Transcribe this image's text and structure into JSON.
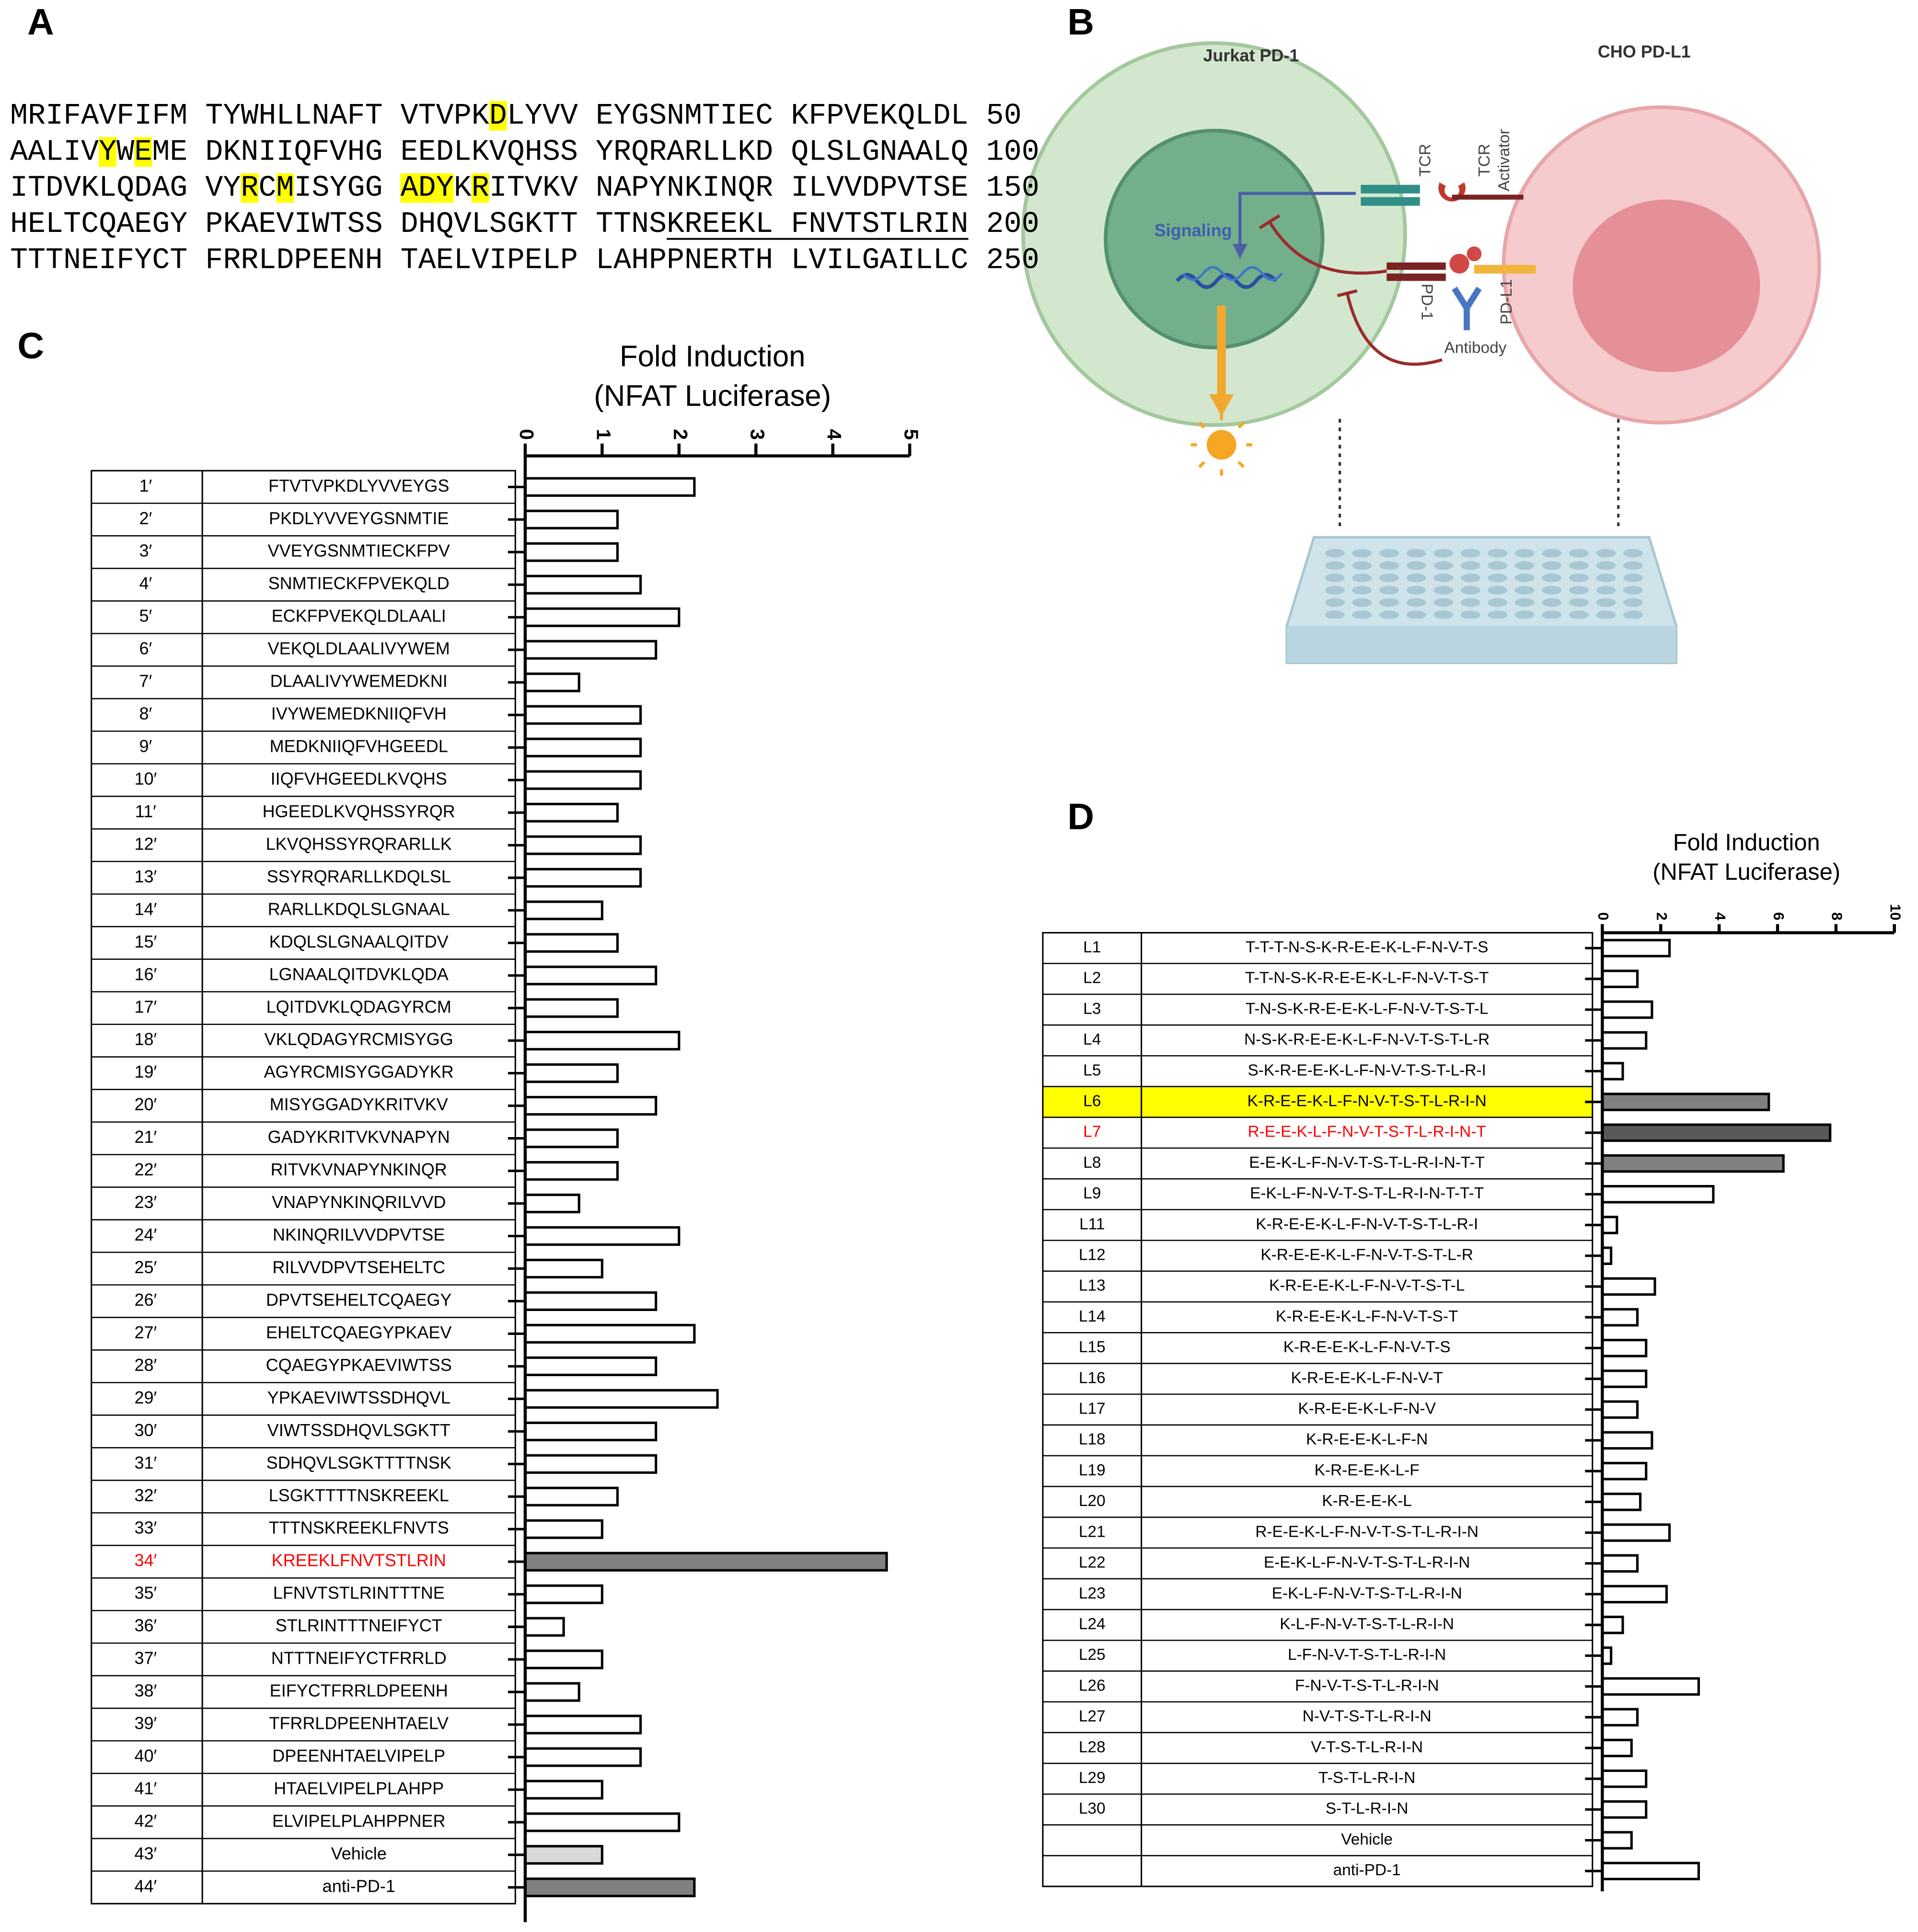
{
  "panel_a": {
    "label": "A",
    "lines": [
      {
        "segments": [
          {
            "text": "MRIFAVFIFM TYWHLLNAFT VTVPK",
            "style": "plain"
          },
          {
            "text": "D",
            "style": "highlight"
          },
          {
            "text": "LYVV EYGSNMTIEC KFPVEKQLDL",
            "style": "plain"
          }
        ],
        "number": "50"
      },
      {
        "segments": [
          {
            "text": "AALIV",
            "style": "plain"
          },
          {
            "text": "Y",
            "style": "highlight"
          },
          {
            "text": "W",
            "style": "plain"
          },
          {
            "text": "E",
            "style": "highlight"
          },
          {
            "text": "ME DKNIIQFVHG EEDLKVQHSS YRQRARLLKD QLSLGNAALQ",
            "style": "plain"
          }
        ],
        "number": "100"
      },
      {
        "segments": [
          {
            "text": "ITDVKLQDAG VY",
            "style": "plain"
          },
          {
            "text": "R",
            "style": "highlight"
          },
          {
            "text": "C",
            "style": "plain"
          },
          {
            "text": "M",
            "style": "highlight"
          },
          {
            "text": "ISYGG ",
            "style": "plain"
          },
          {
            "text": "ADY",
            "style": "highlight"
          },
          {
            "text": "K",
            "style": "plain"
          },
          {
            "text": "R",
            "style": "highlight"
          },
          {
            "text": "ITVKV NAPYNKINQR ILVVDPVTSE",
            "style": "plain"
          }
        ],
        "number": "150"
      },
      {
        "segments": [
          {
            "text": "HELTCQAEGY PKAEVIWTSS DHQVLSGKTT TTNS",
            "style": "plain"
          },
          {
            "text": "KREEKL FNVTSTLRIN",
            "style": "underline"
          }
        ],
        "number": "200"
      },
      {
        "segments": [
          {
            "text": "TTTNEIFYCT FRRLDPEENH TAELVIPELP LAHPPNERTH LVILGAILLC",
            "style": "plain"
          }
        ],
        "number": "250"
      }
    ]
  },
  "panel_b": {
    "label": "B",
    "jurkat": "Jurkat PD-1",
    "cho": "CHO PD-L1",
    "signaling": "Signaling",
    "tcr": "TCR",
    "tcr_activator": [
      "TCR",
      "Activator"
    ],
    "pd1": "PD-1",
    "pdl1": "PD-L1",
    "antibody": "Antibody"
  },
  "chart_data": [
    {
      "type": "bar",
      "orientation": "horizontal",
      "panel": "C",
      "title": "Fold Induction",
      "subtitle": "(NFAT Luciferase)",
      "row_labels": [
        "1′",
        "2′",
        "3′",
        "4′",
        "5′",
        "6′",
        "7′",
        "8′",
        "9′",
        "10′",
        "11′",
        "12′",
        "13′",
        "14′",
        "15′",
        "16′",
        "17′",
        "18′",
        "19′",
        "20′",
        "21′",
        "22′",
        "23′",
        "24′",
        "25′",
        "26′",
        "27′",
        "28′",
        "29′",
        "30′",
        "31′",
        "32′",
        "33′",
        "34′",
        "35′",
        "36′",
        "37′",
        "38′",
        "39′",
        "40′",
        "41′",
        "42′",
        "43′",
        "44′"
      ],
      "categories": [
        "FTVTVPKDLYVVEYGS",
        "PKDLYVVEYGSNMTIE",
        "VVEYGSNMTIECKFPV",
        "SNMTIECKFPVEKQLD",
        "ECKFPVEKQLDLAALI",
        "VEKQLDLAALIVYWEM",
        "DLAALIVYWEMEDKNI",
        "IVYWEMEDKNIIQFVH",
        "MEDKNIIQFVHGEEDL",
        "IIQFVHGEEDLKVQHS",
        "HGEEDLKVQHSSYRQR",
        "LKVQHSSYRQRARLLK",
        "SSYRQRARLLKDQLSL",
        "RARLLKDQLSLGNAAL",
        "KDQLSLGNAALQITDV",
        "LGNAALQITDVKLQDA",
        "LQITDVKLQDAGYRCM",
        "VKLQDAGYRCMISYGG",
        "AGYRCMISYGGADYKR",
        "MISYGGADYKRITVKV",
        "GADYKRITVKVNAPYN",
        "RITVKVNAPYNKINQR",
        "VNAPYNKINQRILVVD",
        "NKINQRILVVDPVTSE",
        "RILVVDPVTSEHELTC",
        "DPVTSEHELTCQAEGY",
        "EHELTCQAEGYPKAEV",
        "CQAEGYPKAEVIWTSS",
        "YPKAEVIWTSSDHQVL",
        "VIWTSSDHQVLSGKTT",
        "SDHQVLSGKTTTTNSK",
        "LSGKTTTTNSKREEKL",
        "TTTNSKREEKLFNVTS",
        "KREEKLFNVTSTLRIN",
        "LFNVTSTLRINTTTNE",
        "STLRINTTTNEIFYCT",
        "NTTTNEIFYCTFRRLD",
        "EIFYCTFRRLDPEENH",
        "TFRRLDPEENHTAELV",
        "DPEENHTAELVIPELP",
        "HTAELVIPELPLAHPP",
        "ELVIPELPLAHPPNER",
        "Vehicle",
        "anti-PD-1"
      ],
      "values": [
        2.2,
        1.2,
        1.2,
        1.5,
        2.0,
        1.7,
        0.7,
        1.5,
        1.5,
        1.5,
        1.2,
        1.5,
        1.5,
        1.0,
        1.2,
        1.7,
        1.2,
        2.0,
        1.2,
        1.7,
        1.2,
        1.2,
        0.7,
        2.0,
        1.0,
        1.7,
        2.2,
        1.7,
        2.5,
        1.7,
        1.7,
        1.2,
        1.0,
        4.7,
        1.0,
        0.5,
        1.0,
        0.7,
        1.5,
        1.5,
        1.0,
        2.0,
        1.0,
        2.2
      ],
      "colors": [
        "#ffffff",
        "#ffffff",
        "#ffffff",
        "#ffffff",
        "#ffffff",
        "#ffffff",
        "#ffffff",
        "#ffffff",
        "#ffffff",
        "#ffffff",
        "#ffffff",
        "#ffffff",
        "#ffffff",
        "#ffffff",
        "#ffffff",
        "#ffffff",
        "#ffffff",
        "#ffffff",
        "#ffffff",
        "#ffffff",
        "#ffffff",
        "#ffffff",
        "#ffffff",
        "#ffffff",
        "#ffffff",
        "#ffffff",
        "#ffffff",
        "#ffffff",
        "#ffffff",
        "#ffffff",
        "#ffffff",
        "#ffffff",
        "#ffffff",
        "#808080",
        "#ffffff",
        "#ffffff",
        "#ffffff",
        "#ffffff",
        "#ffffff",
        "#ffffff",
        "#ffffff",
        "#ffffff",
        "#d9d9d9",
        "#808080"
      ],
      "label_colors": [
        "#000000",
        "#000000",
        "#000000",
        "#000000",
        "#000000",
        "#000000",
        "#000000",
        "#000000",
        "#000000",
        "#000000",
        "#000000",
        "#000000",
        "#000000",
        "#000000",
        "#000000",
        "#000000",
        "#000000",
        "#000000",
        "#000000",
        "#000000",
        "#000000",
        "#000000",
        "#000000",
        "#000000",
        "#000000",
        "#000000",
        "#000000",
        "#000000",
        "#000000",
        "#000000",
        "#000000",
        "#000000",
        "#000000",
        "#ff0000",
        "#000000",
        "#000000",
        "#000000",
        "#000000",
        "#000000",
        "#000000",
        "#000000",
        "#000000",
        "#000000",
        "#000000"
      ],
      "xlim": [
        0,
        5
      ],
      "xticks": [
        0,
        1,
        2,
        3,
        4,
        5
      ]
    },
    {
      "type": "bar",
      "orientation": "horizontal",
      "panel": "D",
      "title": "Fold Induction",
      "subtitle": "(NFAT Luciferase)",
      "row_labels": [
        "L1",
        "L2",
        "L3",
        "L4",
        "L5",
        "L6",
        "L7",
        "L8",
        "L9",
        "L11",
        "L12",
        "L13",
        "L14",
        "L15",
        "L16",
        "L17",
        "L18",
        "L19",
        "L20",
        "L21",
        "L22",
        "L23",
        "L24",
        "L25",
        "L26",
        "L27",
        "L28",
        "L29",
        "L30",
        null,
        null
      ],
      "categories": [
        "T-T-T-N-S-K-R-E-E-K-L-F-N-V-T-S",
        "T-T-N-S-K-R-E-E-K-L-F-N-V-T-S-T",
        "T-N-S-K-R-E-E-K-L-F-N-V-T-S-T-L",
        "N-S-K-R-E-E-K-L-F-N-V-T-S-T-L-R",
        "S-K-R-E-E-K-L-F-N-V-T-S-T-L-R-I",
        "K-R-E-E-K-L-F-N-V-T-S-T-L-R-I-N",
        "R-E-E-K-L-F-N-V-T-S-T-L-R-I-N-T",
        "E-E-K-L-F-N-V-T-S-T-L-R-I-N-T-T",
        "E-K-L-F-N-V-T-S-T-L-R-I-N-T-T-T",
        "K-R-E-E-K-L-F-N-V-T-S-T-L-R-I",
        "K-R-E-E-K-L-F-N-V-T-S-T-L-R",
        "K-R-E-E-K-L-F-N-V-T-S-T-L",
        "K-R-E-E-K-L-F-N-V-T-S-T",
        "K-R-E-E-K-L-F-N-V-T-S",
        "K-R-E-E-K-L-F-N-V-T",
        "K-R-E-E-K-L-F-N-V",
        "K-R-E-E-K-L-F-N",
        "K-R-E-E-K-L-F",
        "K-R-E-E-K-L",
        "R-E-E-K-L-F-N-V-T-S-T-L-R-I-N",
        "E-E-K-L-F-N-V-T-S-T-L-R-I-N",
        "E-K-L-F-N-V-T-S-T-L-R-I-N",
        "K-L-F-N-V-T-S-T-L-R-I-N",
        "L-F-N-V-T-S-T-L-R-I-N",
        "F-N-V-T-S-T-L-R-I-N",
        "N-V-T-S-T-L-R-I-N",
        "V-T-S-T-L-R-I-N",
        "T-S-T-L-R-I-N",
        "S-T-L-R-I-N",
        "Vehicle",
        "anti-PD-1"
      ],
      "values": [
        2.3,
        1.2,
        1.7,
        1.5,
        0.7,
        5.7,
        7.8,
        6.2,
        3.8,
        0.5,
        0.3,
        1.8,
        1.2,
        1.5,
        1.5,
        1.2,
        1.7,
        1.5,
        1.3,
        2.3,
        1.2,
        2.2,
        0.7,
        0.3,
        3.3,
        1.2,
        1.0,
        1.5,
        1.5,
        1.0,
        3.3
      ],
      "colors": [
        "#ffffff",
        "#ffffff",
        "#ffffff",
        "#ffffff",
        "#ffffff",
        "#808080",
        "#595959",
        "#808080",
        "#ffffff",
        "#ffffff",
        "#ffffff",
        "#ffffff",
        "#ffffff",
        "#ffffff",
        "#ffffff",
        "#ffffff",
        "#ffffff",
        "#ffffff",
        "#ffffff",
        "#ffffff",
        "#ffffff",
        "#ffffff",
        "#ffffff",
        "#ffffff",
        "#ffffff",
        "#ffffff",
        "#ffffff",
        "#ffffff",
        "#ffffff",
        "#ffffff",
        "#ffffff"
      ],
      "label_colors": [
        "#000000",
        "#000000",
        "#000000",
        "#000000",
        "#000000",
        "#000000",
        "#ff0000",
        "#000000",
        "#000000",
        "#000000",
        "#000000",
        "#000000",
        "#000000",
        "#000000",
        "#000000",
        "#000000",
        "#000000",
        "#000000",
        "#000000",
        "#000000",
        "#000000",
        "#000000",
        "#000000",
        "#000000",
        "#000000",
        "#000000",
        "#000000",
        "#000000",
        "#000000",
        "#000000",
        "#000000"
      ],
      "row_fills": [
        "none",
        "none",
        "none",
        "none",
        "none",
        "#ffff00",
        "none",
        "none",
        "none",
        "none",
        "none",
        "none",
        "none",
        "none",
        "none",
        "none",
        "none",
        "none",
        "none",
        "none",
        "none",
        "none",
        "none",
        "none",
        "none",
        "none",
        "none",
        "none",
        "none",
        "none",
        "none"
      ],
      "xlim": [
        0,
        10
      ],
      "xticks": [
        0,
        2,
        4,
        6,
        8,
        10
      ]
    }
  ]
}
